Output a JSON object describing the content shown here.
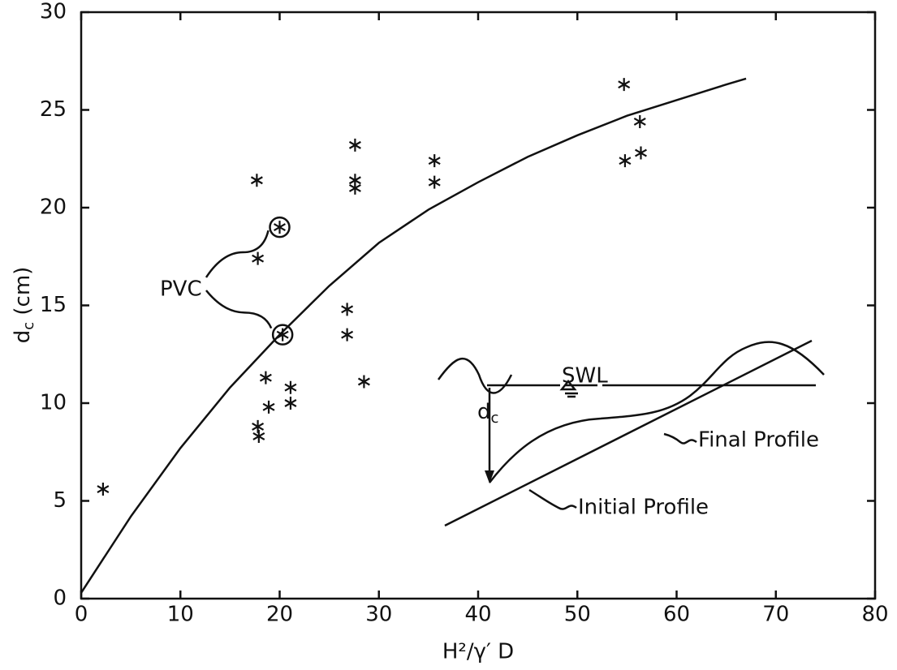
{
  "chart_data": {
    "type": "scatter",
    "x_label": "H²/γ′ D",
    "y_label": [
      "d",
      "c",
      " (cm)"
    ],
    "x": [
      2.2,
      17.7,
      17.8,
      18.6,
      18.9,
      17.8,
      17.9,
      21.1,
      21.1,
      20.0,
      20.3,
      27.6,
      27.6,
      27.6,
      26.8,
      26.8,
      28.5,
      35.6,
      35.6,
      54.7,
      56.3,
      54.8,
      56.4
    ],
    "y": [
      5.6,
      21.4,
      17.4,
      11.3,
      9.8,
      8.8,
      8.3,
      10.8,
      10.0,
      19.0,
      13.5,
      23.2,
      21.4,
      21.0,
      14.8,
      13.5,
      11.1,
      22.4,
      21.3,
      26.3,
      24.4,
      22.4,
      22.8
    ],
    "color": "#111111",
    "curve": {
      "x": [
        0,
        5,
        10,
        15,
        20,
        25,
        30,
        35,
        40,
        45,
        50,
        55,
        60,
        65,
        67
      ],
      "y": [
        0.3,
        4.2,
        7.7,
        10.8,
        13.5,
        16.0,
        18.2,
        19.9,
        21.3,
        22.6,
        23.7,
        24.7,
        25.5,
        26.3,
        26.6
      ]
    },
    "annotation": {
      "text": "PVC",
      "points": [
        9,
        10
      ]
    },
    "inset": {
      "swl": "SWL",
      "dc": [
        "d",
        "c"
      ],
      "final": "Final Profile",
      "initial": "Initial Profile"
    },
    "xlim": [
      0,
      80
    ],
    "xticks": [
      0,
      10,
      20,
      30,
      40,
      50,
      60,
      70,
      80
    ],
    "ylim": [
      0,
      30
    ],
    "yticks": [
      0,
      5,
      10,
      15,
      20,
      25,
      30
    ],
    "grid": false
  }
}
